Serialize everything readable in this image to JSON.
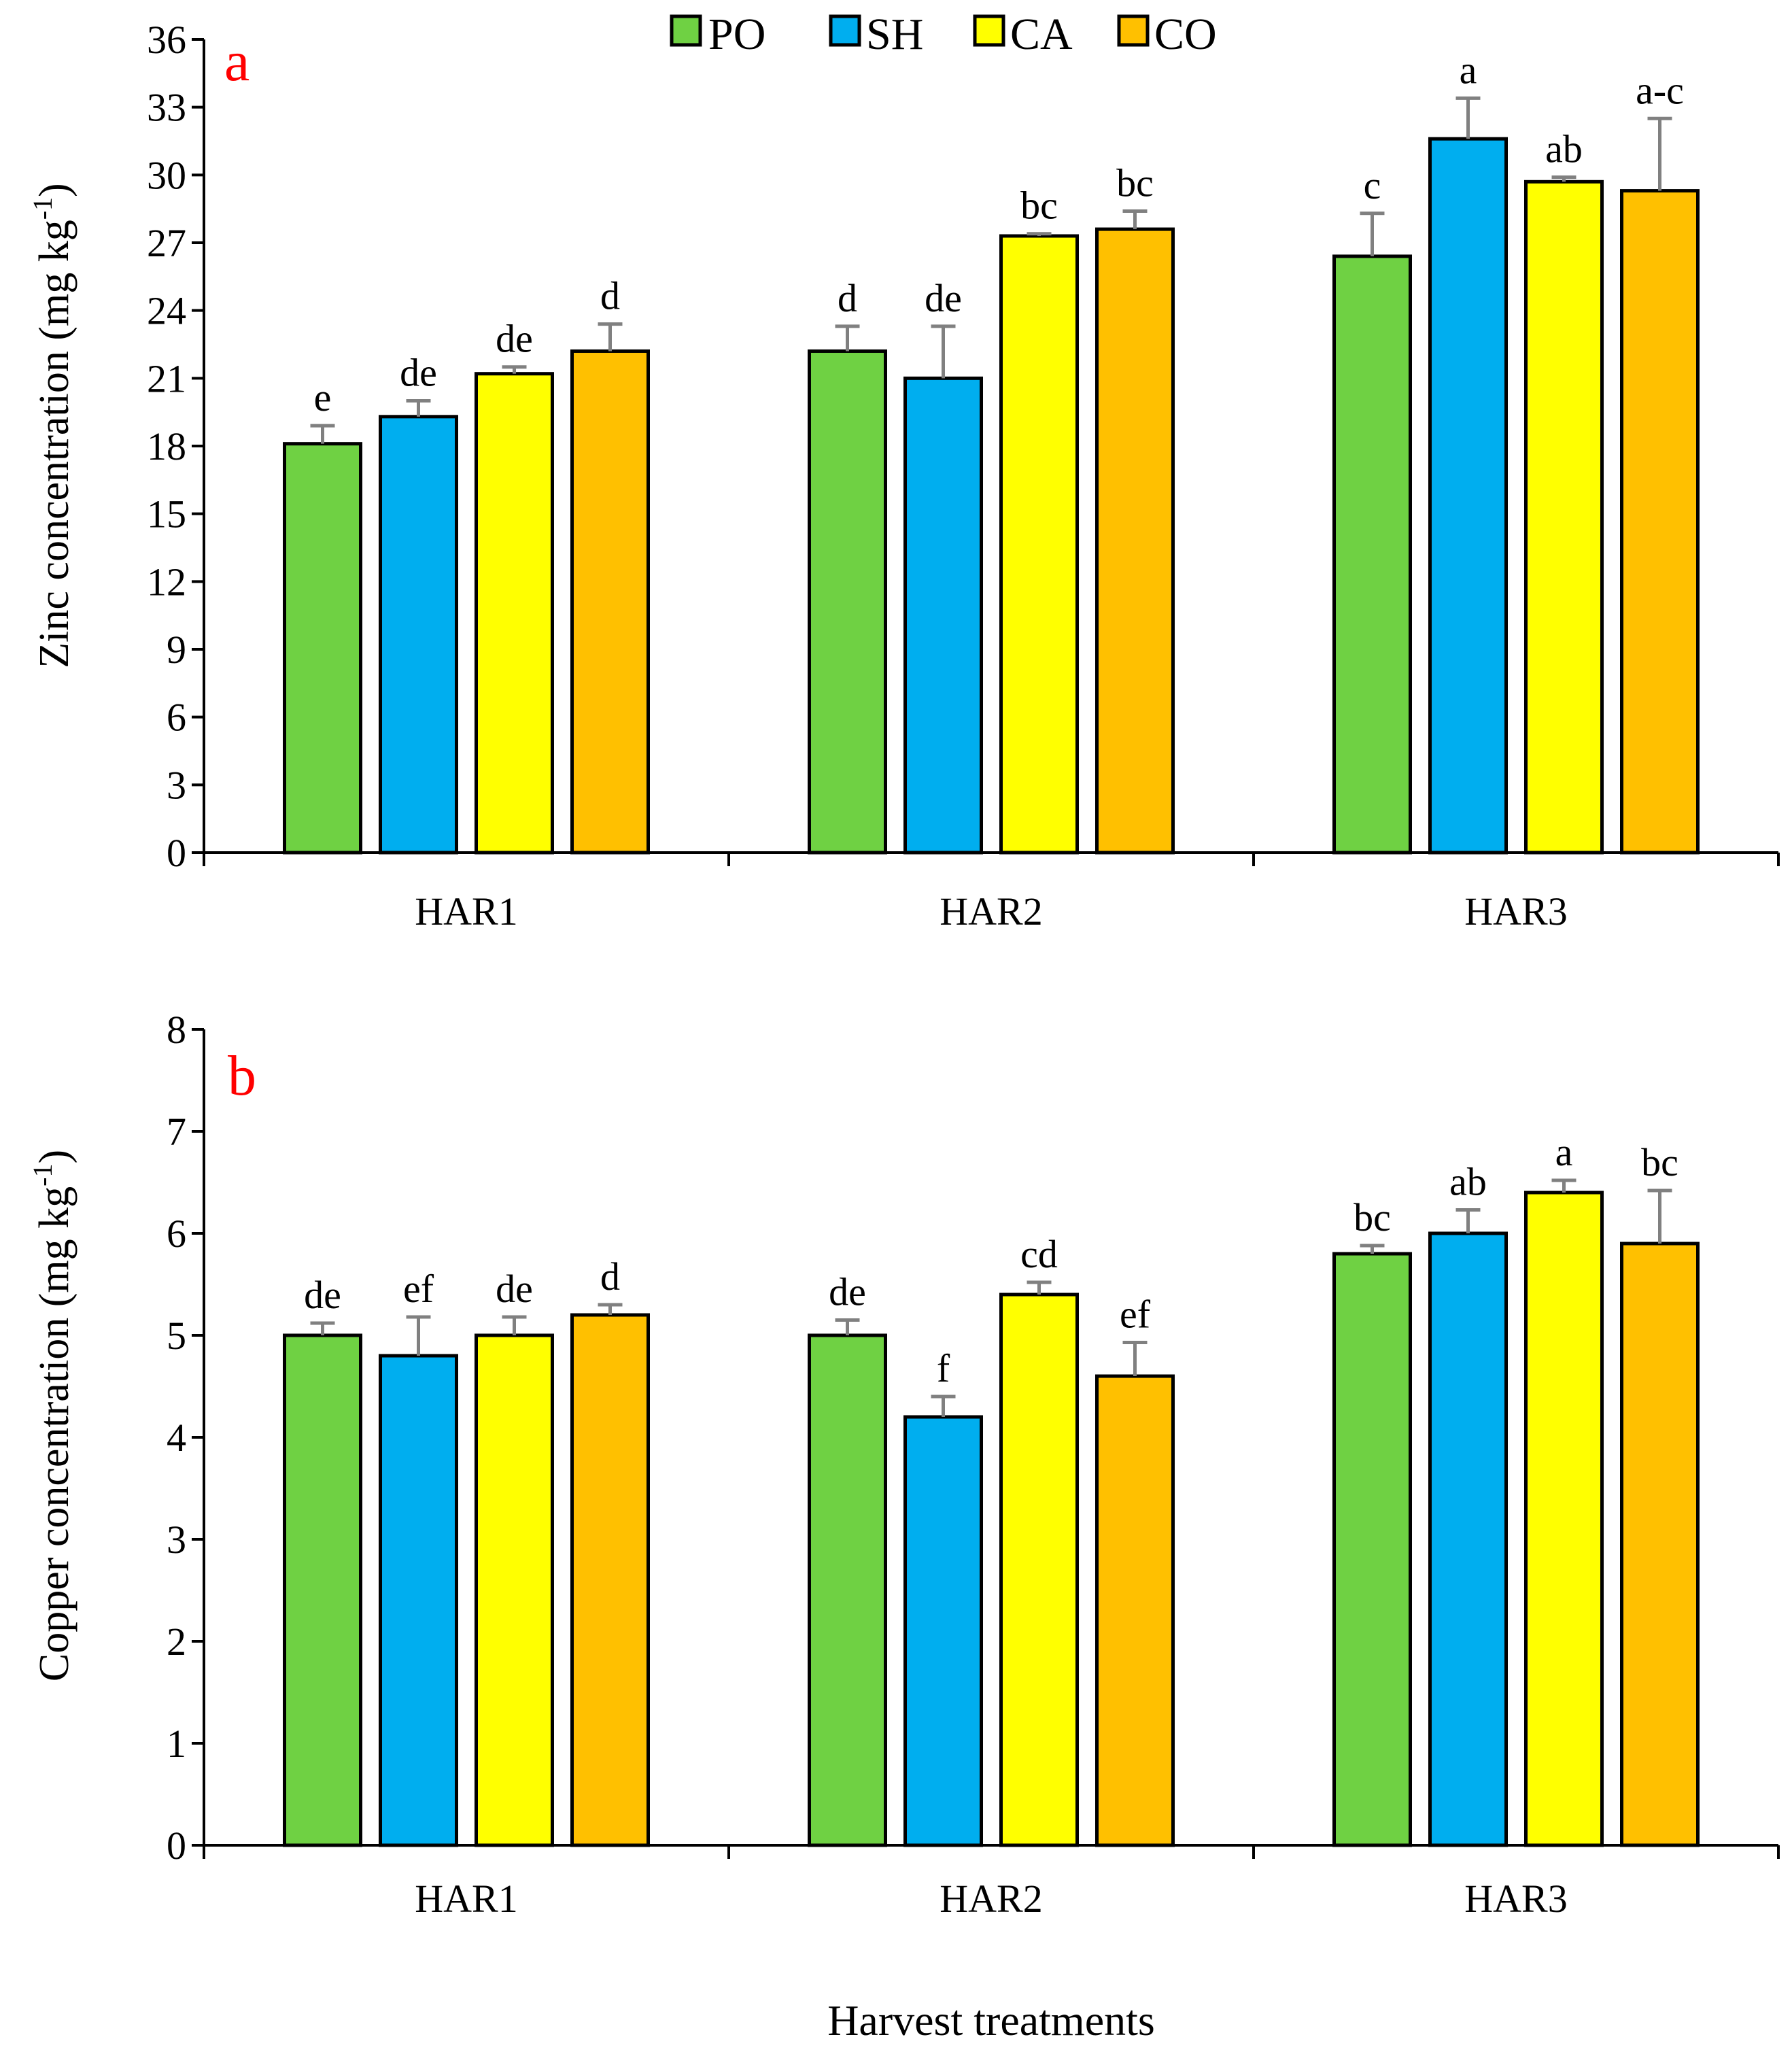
{
  "legend": [
    {
      "key": "PO",
      "color": "#6fd143"
    },
    {
      "key": "SH",
      "color": "#00aeef"
    },
    {
      "key": "CA",
      "color": "#ffff00"
    },
    {
      "key": "CO",
      "color": "#ffc000"
    }
  ],
  "xlabel": "Harvest treatments",
  "chart_data": [
    {
      "type": "bar",
      "panel": "a",
      "ylabel": "Zinc concentration (mg kg-1)",
      "ylabel_main": "Zinc concentration (mg kg",
      "ylabel_sup": "-1",
      "ylabel_close": ")",
      "ylim": [
        0,
        36
      ],
      "yticks": [
        0,
        3,
        6,
        9,
        12,
        15,
        18,
        21,
        24,
        27,
        30,
        33,
        36
      ],
      "categories": [
        "HAR1",
        "HAR2",
        "HAR3"
      ],
      "series": [
        {
          "name": "PO",
          "values": [
            18.1,
            22.2,
            26.4
          ],
          "errors": [
            0.8,
            1.1,
            1.9
          ],
          "labels": [
            "e",
            "d",
            "c"
          ]
        },
        {
          "name": "SH",
          "values": [
            19.3,
            21.0,
            31.6
          ],
          "errors": [
            0.7,
            2.3,
            1.8
          ],
          "labels": [
            "de",
            "de",
            "a"
          ]
        },
        {
          "name": "CA",
          "values": [
            21.2,
            27.3,
            29.7
          ],
          "errors": [
            0.3,
            0.1,
            0.2
          ],
          "labels": [
            "de",
            "bc",
            "ab"
          ]
        },
        {
          "name": "CO",
          "values": [
            22.2,
            27.6,
            29.3
          ],
          "errors": [
            1.2,
            0.8,
            3.2
          ],
          "labels": [
            "d",
            "bc",
            "a-c"
          ]
        }
      ]
    },
    {
      "type": "bar",
      "panel": "b",
      "ylabel": "Copper concentration (mg kg-1)",
      "ylabel_main": "Copper concentration (mg kg",
      "ylabel_sup": "-1",
      "ylabel_close": ")",
      "ylim": [
        0,
        8
      ],
      "yticks": [
        0,
        1,
        2,
        3,
        4,
        5,
        6,
        7,
        8
      ],
      "categories": [
        "HAR1",
        "HAR2",
        "HAR3"
      ],
      "series": [
        {
          "name": "PO",
          "values": [
            5.0,
            5.0,
            5.8
          ],
          "errors": [
            0.12,
            0.15,
            0.08
          ],
          "labels": [
            "de",
            "de",
            "bc"
          ]
        },
        {
          "name": "SH",
          "values": [
            4.8,
            4.2,
            6.0
          ],
          "errors": [
            0.38,
            0.2,
            0.23
          ],
          "labels": [
            "ef",
            "f",
            "ab"
          ]
        },
        {
          "name": "CA",
          "values": [
            5.0,
            5.4,
            6.4
          ],
          "errors": [
            0.18,
            0.12,
            0.12
          ],
          "labels": [
            "de",
            "cd",
            "a"
          ]
        },
        {
          "name": "CO",
          "values": [
            5.2,
            4.6,
            5.9
          ],
          "errors": [
            0.1,
            0.33,
            0.52
          ],
          "labels": [
            "d",
            "ef",
            "bc"
          ]
        }
      ]
    }
  ]
}
